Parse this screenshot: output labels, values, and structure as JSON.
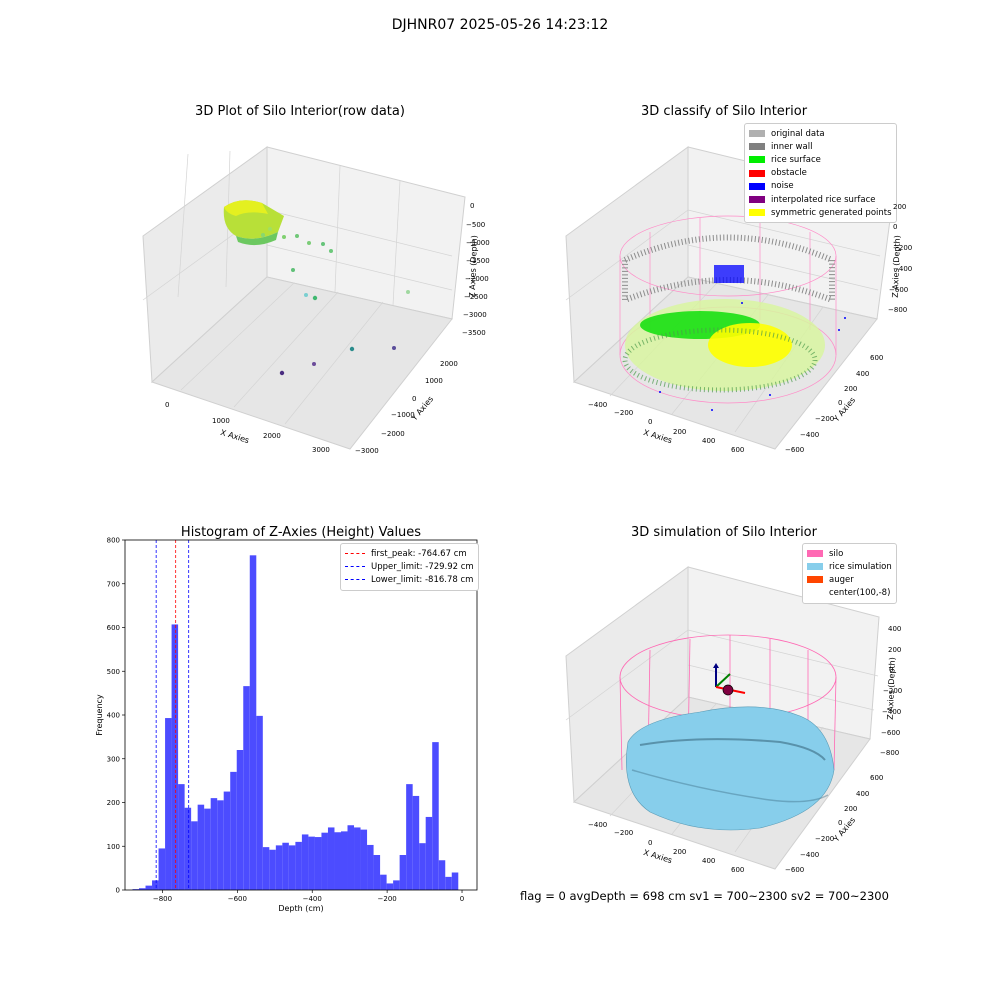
{
  "suptitle": "DJHNR07 2025-05-26 14:23:12",
  "colors": {
    "raw_gradient": [
      "#d8f020",
      "#aee83a",
      "#55c86a"
    ],
    "gray_wall": "#808080",
    "rice": "#00ee00",
    "noise": "#0000ff",
    "yellow": "#ffff00",
    "pink": "#ff69b4",
    "sky": "#87ceeb",
    "hist": "#4c4cff"
  },
  "panels": {
    "raw": {
      "title": "3D Plot of Silo Interior(row data)",
      "xlabel": "X Axies",
      "ylabel": "Y Axies",
      "zlabel": "Z Axies (Depth)",
      "xticks": [
        "0",
        "1000",
        "2000",
        "3000"
      ],
      "yticks": [
        "−3000",
        "−2000",
        "−1000",
        "0",
        "1000",
        "2000"
      ],
      "zticks": [
        "0",
        "−500",
        "−1000",
        "−1500",
        "−2000",
        "−2500",
        "−3000",
        "−3500"
      ]
    },
    "classify": {
      "title": "3D classify of Silo Interior",
      "xlabel": "X Axies",
      "ylabel": "Y Axies",
      "zlabel": "Z Axies (Depth)",
      "xticks": [
        "−400",
        "−200",
        "0",
        "200",
        "400",
        "600"
      ],
      "yticks": [
        "−600",
        "−400",
        "−200",
        "0",
        "200",
        "400",
        "600"
      ],
      "zticks": [
        "200",
        "0",
        "−200",
        "−400",
        "−600",
        "−800"
      ],
      "legend": [
        {
          "label": "original data",
          "color": "#b0b0b0"
        },
        {
          "label": "inner wall",
          "color": "#808080"
        },
        {
          "label": "rice surface",
          "color": "#00ee00"
        },
        {
          "label": "obstacle",
          "color": "#ff0000"
        },
        {
          "label": "noise",
          "color": "#0000ff"
        },
        {
          "label": "interpolated rice surface",
          "color": "#800080"
        },
        {
          "label": "symmetric generated points",
          "color": "#ffff00"
        }
      ]
    },
    "hist": {
      "title": "Histogram of Z-Axies (Height) Values",
      "legend": [
        {
          "label": "first_peak: -764.67 cm",
          "color": "#ff0000"
        },
        {
          "label": "Upper_limit: -729.92 cm",
          "color": "#0000ff"
        },
        {
          "label": "Lower_limit: -816.78 cm",
          "color": "#0000ff"
        }
      ]
    },
    "sim": {
      "title": "3D simulation of Silo Interior",
      "xlabel": "X Axies",
      "ylabel": "Y Axies",
      "zlabel": "Z Axies (Depth)",
      "xticks": [
        "−400",
        "−200",
        "0",
        "200",
        "400",
        "600"
      ],
      "yticks": [
        "−600",
        "−400",
        "−200",
        "0",
        "200",
        "400",
        "600"
      ],
      "zticks": [
        "400",
        "200",
        "0",
        "−200",
        "−400",
        "−600",
        "−800"
      ],
      "legend": [
        {
          "label": "silo",
          "color": "#ff69b4"
        },
        {
          "label": "rice simulation",
          "color": "#87ceeb"
        },
        {
          "label": "auger",
          "color": "#ff4500"
        },
        {
          "label": "center(100,-8)",
          "color": "#ffffff"
        }
      ]
    }
  },
  "footer": "flag = 0     avgDepth = 698 cm  sv1 = 700~2300  sv2 = 700~2300",
  "chart_data": [
    {
      "type": "bar",
      "title": "Histogram of Z-Axies (Height) Values",
      "xlabel": "Depth (cm)",
      "ylabel": "Frequency",
      "xlim": [
        -900,
        40
      ],
      "ylim": [
        0,
        800
      ],
      "xticks": [
        -800,
        -600,
        -400,
        -200,
        0
      ],
      "yticks": [
        0,
        100,
        200,
        300,
        400,
        500,
        600,
        700,
        800
      ],
      "bin_width": 17.4,
      "x": [
        -880,
        -862.6,
        -845.2,
        -827.8,
        -810.4,
        -793,
        -775.6,
        -758.2,
        -740.8,
        -723.4,
        -706,
        -688.6,
        -671.2,
        -653.8,
        -636.4,
        -619,
        -601.6,
        -584.2,
        -566.8,
        -549.4,
        -532,
        -514.6,
        -497.2,
        -479.8,
        -462.4,
        -445,
        -427.6,
        -410.2,
        -392.8,
        -375.4,
        -358,
        -340.6,
        -323.2,
        -305.8,
        -288.4,
        -271,
        -253.6,
        -236.2,
        -218.8,
        -201.4,
        -184,
        -166.6,
        -149.2,
        -131.8,
        -114.4,
        -97,
        -79.6,
        -62.2,
        -44.8,
        -27.4,
        -10
      ],
      "values": [
        2,
        4,
        10,
        22,
        95,
        393,
        607,
        242,
        188,
        157,
        195,
        186,
        210,
        205,
        225,
        270,
        320,
        466,
        765,
        398,
        98,
        92,
        102,
        108,
        102,
        110,
        127,
        122,
        121,
        131,
        143,
        132,
        134,
        148,
        143,
        138,
        103,
        80,
        35,
        15,
        22,
        80,
        242,
        215,
        107,
        167,
        338,
        68,
        30,
        40,
        0
      ],
      "vlines": [
        {
          "x": -764.67,
          "label": "first_peak: -764.67 cm",
          "color": "#ff0000"
        },
        {
          "x": -729.92,
          "label": "Upper_limit: -729.92 cm",
          "color": "#0000ff"
        },
        {
          "x": -816.78,
          "label": "Lower_limit: -816.78 cm",
          "color": "#0000ff"
        }
      ]
    }
  ]
}
